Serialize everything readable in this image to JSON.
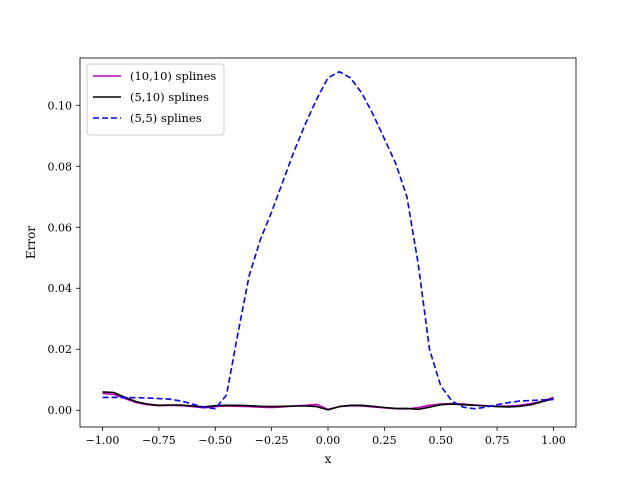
{
  "chart_data": {
    "type": "line",
    "xlabel": "x",
    "ylabel": "Error",
    "xlim": [
      -1.1,
      1.1
    ],
    "ylim": [
      -0.0055,
      0.1155
    ],
    "xticks": [
      -1.0,
      -0.75,
      -0.5,
      -0.25,
      0.0,
      0.25,
      0.5,
      0.75,
      1.0
    ],
    "xtick_labels": [
      "−1.00",
      "−0.75",
      "−0.50",
      "−0.25",
      "0.00",
      "0.25",
      "0.50",
      "0.75",
      "1.00"
    ],
    "yticks": [
      0.0,
      0.02,
      0.04,
      0.06,
      0.08,
      0.1
    ],
    "ytick_labels": [
      "0.00",
      "0.02",
      "0.04",
      "0.06",
      "0.08",
      "0.10"
    ],
    "grid": false,
    "legend_position": "top-left",
    "series": [
      {
        "name": "(10,10) splines",
        "color": "#bf00bf",
        "dash": "solid",
        "x": [
          -1.0,
          -0.95,
          -0.9,
          -0.85,
          -0.8,
          -0.75,
          -0.7,
          -0.65,
          -0.6,
          -0.55,
          -0.5,
          -0.45,
          -0.4,
          -0.35,
          -0.3,
          -0.25,
          -0.2,
          -0.15,
          -0.1,
          -0.05,
          0.0,
          0.05,
          0.1,
          0.15,
          0.2,
          0.25,
          0.3,
          0.35,
          0.4,
          0.45,
          0.5,
          0.55,
          0.6,
          0.65,
          0.7,
          0.75,
          0.8,
          0.85,
          0.9,
          0.95,
          1.0
        ],
        "y": [
          0.0055,
          0.0052,
          0.0038,
          0.0025,
          0.0018,
          0.0015,
          0.0016,
          0.0015,
          0.0012,
          0.0008,
          0.0012,
          0.0014,
          0.0013,
          0.0012,
          0.001,
          0.0009,
          0.0011,
          0.0014,
          0.0016,
          0.0019,
          0.0003,
          0.0012,
          0.0015,
          0.0014,
          0.0011,
          0.0008,
          0.0005,
          0.0004,
          0.0009,
          0.0016,
          0.002,
          0.0022,
          0.002,
          0.0017,
          0.0015,
          0.0013,
          0.0014,
          0.0016,
          0.0022,
          0.003,
          0.0042
        ]
      },
      {
        "name": "(5,10) splines",
        "color": "#000000",
        "dash": "solid",
        "x": [
          -1.0,
          -0.95,
          -0.9,
          -0.85,
          -0.8,
          -0.75,
          -0.7,
          -0.65,
          -0.6,
          -0.55,
          -0.5,
          -0.45,
          -0.4,
          -0.35,
          -0.3,
          -0.25,
          -0.2,
          -0.15,
          -0.1,
          -0.05,
          0.0,
          0.05,
          0.1,
          0.15,
          0.2,
          0.25,
          0.3,
          0.35,
          0.4,
          0.45,
          0.5,
          0.55,
          0.6,
          0.65,
          0.7,
          0.75,
          0.8,
          0.85,
          0.9,
          0.95,
          1.0
        ],
        "y": [
          0.006,
          0.0058,
          0.0042,
          0.0028,
          0.002,
          0.0016,
          0.0017,
          0.0017,
          0.0014,
          0.0011,
          0.0015,
          0.0016,
          0.0016,
          0.0015,
          0.0013,
          0.0012,
          0.0013,
          0.0014,
          0.0014,
          0.0012,
          0.0001,
          0.0012,
          0.0016,
          0.0016,
          0.0013,
          0.0009,
          0.0006,
          0.0006,
          0.0003,
          0.001,
          0.0018,
          0.002,
          0.0018,
          0.0016,
          0.0014,
          0.0012,
          0.0011,
          0.0013,
          0.0018,
          0.0028,
          0.0038
        ]
      },
      {
        "name": "(5,5) splines",
        "color": "#0000ff",
        "dash": "dashed",
        "x": [
          -1.0,
          -0.95,
          -0.9,
          -0.85,
          -0.8,
          -0.75,
          -0.7,
          -0.65,
          -0.6,
          -0.55,
          -0.5,
          -0.45,
          -0.4,
          -0.35,
          -0.3,
          -0.25,
          -0.2,
          -0.15,
          -0.1,
          -0.05,
          0.0,
          0.05,
          0.1,
          0.15,
          0.2,
          0.25,
          0.3,
          0.35,
          0.4,
          0.45,
          0.5,
          0.55,
          0.6,
          0.65,
          0.7,
          0.75,
          0.8,
          0.85,
          0.9,
          0.95,
          1.0
        ],
        "y": [
          0.0042,
          0.0042,
          0.0042,
          0.0041,
          0.004,
          0.0038,
          0.0036,
          0.003,
          0.002,
          0.001,
          0.0005,
          0.005,
          0.025,
          0.044,
          0.056,
          0.065,
          0.075,
          0.085,
          0.094,
          0.102,
          0.109,
          0.111,
          0.109,
          0.104,
          0.097,
          0.089,
          0.081,
          0.07,
          0.048,
          0.02,
          0.008,
          0.003,
          0.001,
          0.0005,
          0.001,
          0.0018,
          0.0025,
          0.003,
          0.0032,
          0.0034,
          0.0035
        ]
      }
    ]
  }
}
